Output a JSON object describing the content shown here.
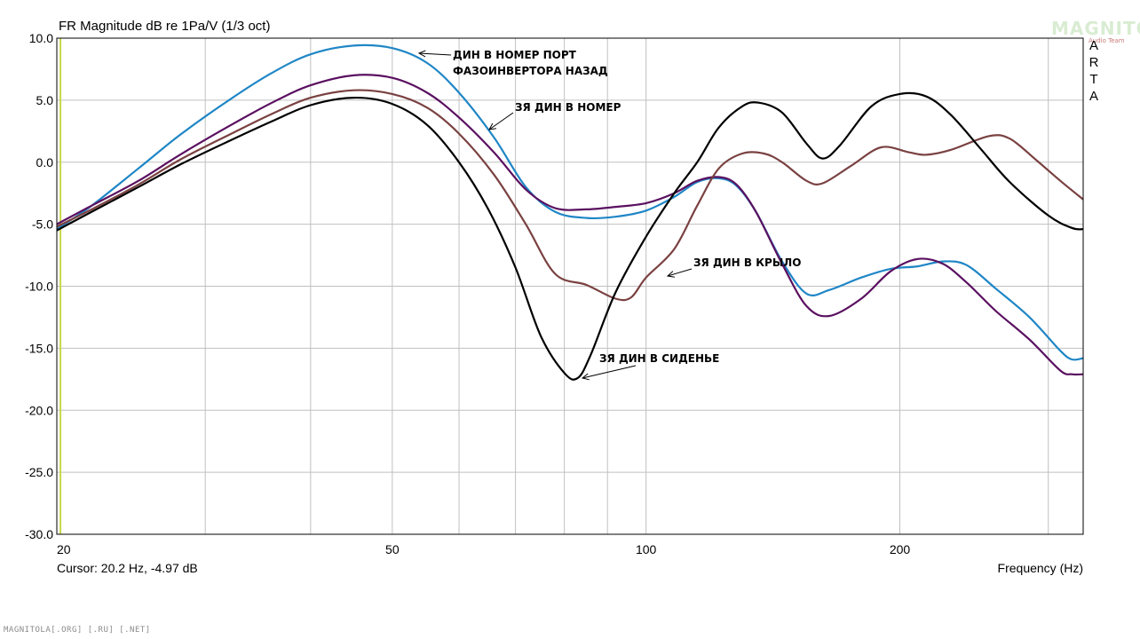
{
  "header": {
    "title": "FR Magnitude dB re 1Pa/V (1/3 oct)",
    "side_label": [
      "A",
      "R",
      "T",
      "A"
    ],
    "watermark": "MAGNITOLA",
    "watermark_sub": "Audio Team"
  },
  "status": {
    "cursor": "Cursor: 20.2 Hz, -4.97 dB",
    "x_axis_label": "Frequency (Hz)",
    "footer": "MAGNITOLA[.ORG] [.RU] [.NET]"
  },
  "colors": {
    "background": "#ffffff",
    "grid": "#c0c0c0",
    "frame": "#000000",
    "cursor_line": "#c8d84a"
  },
  "chart_data": {
    "type": "line",
    "title": "FR Magnitude dB re 1Pa/V (1/3 oct)",
    "xlabel": "Frequency (Hz)",
    "ylabel": "",
    "x_scale": "log",
    "xlim": [
      20,
      330
    ],
    "ylim": [
      -30,
      10
    ],
    "x_ticks": [
      20,
      50,
      100,
      200
    ],
    "y_ticks": [
      10,
      5,
      0,
      -5,
      -10,
      -15,
      -20,
      -25,
      -30
    ],
    "y_tick_labels": [
      "10.0",
      "5.0",
      "0.0",
      "-5.0",
      "-10.0",
      "-15.0",
      "-20.0",
      "-25.0",
      "-30.0"
    ],
    "cursor": {
      "x": 20.2,
      "y": -4.97
    },
    "grid": true,
    "series": [
      {
        "name": "ДИН В НОМЕР ПОРТ ФАЗОИНВЕРТОРА НАЗАД",
        "color": "#1f86c6",
        "points": [
          [
            20,
            -5.4
          ],
          [
            22,
            -3.5
          ],
          [
            25,
            -0.5
          ],
          [
            28,
            2.2
          ],
          [
            32,
            5.0
          ],
          [
            36,
            7.2
          ],
          [
            40,
            8.7
          ],
          [
            45,
            9.4
          ],
          [
            50,
            9.2
          ],
          [
            55,
            8.0
          ],
          [
            60,
            5.6
          ],
          [
            66,
            2.0
          ],
          [
            72,
            -2.0
          ],
          [
            78,
            -4.0
          ],
          [
            85,
            -4.5
          ],
          [
            92,
            -4.4
          ],
          [
            100,
            -3.9
          ],
          [
            108,
            -2.8
          ],
          [
            115,
            -1.6
          ],
          [
            122,
            -1.3
          ],
          [
            128,
            -1.9
          ],
          [
            135,
            -4.0
          ],
          [
            145,
            -8.0
          ],
          [
            155,
            -10.6
          ],
          [
            165,
            -10.3
          ],
          [
            180,
            -9.3
          ],
          [
            195,
            -8.6
          ],
          [
            210,
            -8.4
          ],
          [
            225,
            -8.0
          ],
          [
            240,
            -8.3
          ],
          [
            260,
            -10.2
          ],
          [
            285,
            -12.5
          ],
          [
            310,
            -15.2
          ],
          [
            320,
            -15.9
          ],
          [
            330,
            -15.8
          ]
        ]
      },
      {
        "name": "ЗЯ ДИН В НОМЕР",
        "color": "#5a1060",
        "points": [
          [
            20,
            -5.0
          ],
          [
            22,
            -3.5
          ],
          [
            25,
            -1.5
          ],
          [
            28,
            0.6
          ],
          [
            32,
            2.9
          ],
          [
            36,
            4.8
          ],
          [
            40,
            6.2
          ],
          [
            45,
            7.0
          ],
          [
            50,
            6.8
          ],
          [
            55,
            5.6
          ],
          [
            60,
            3.6
          ],
          [
            66,
            0.8
          ],
          [
            72,
            -2.2
          ],
          [
            78,
            -3.7
          ],
          [
            85,
            -3.8
          ],
          [
            92,
            -3.6
          ],
          [
            100,
            -3.3
          ],
          [
            108,
            -2.5
          ],
          [
            115,
            -1.5
          ],
          [
            122,
            -1.2
          ],
          [
            128,
            -1.8
          ],
          [
            135,
            -4.0
          ],
          [
            145,
            -8.2
          ],
          [
            155,
            -11.6
          ],
          [
            165,
            -12.4
          ],
          [
            180,
            -11.0
          ],
          [
            195,
            -8.8
          ],
          [
            210,
            -7.8
          ],
          [
            225,
            -8.2
          ],
          [
            240,
            -9.7
          ],
          [
            260,
            -12.0
          ],
          [
            285,
            -14.3
          ],
          [
            310,
            -16.8
          ],
          [
            320,
            -17.1
          ],
          [
            330,
            -17.1
          ]
        ]
      },
      {
        "name": "ЗЯ ДИН В КРЫЛО",
        "color": "#7a4141",
        "points": [
          [
            20,
            -5.2
          ],
          [
            22,
            -3.8
          ],
          [
            25,
            -1.8
          ],
          [
            28,
            0.2
          ],
          [
            32,
            2.2
          ],
          [
            36,
            3.9
          ],
          [
            40,
            5.2
          ],
          [
            45,
            5.8
          ],
          [
            50,
            5.5
          ],
          [
            55,
            4.4
          ],
          [
            60,
            2.3
          ],
          [
            66,
            -1.0
          ],
          [
            72,
            -5.0
          ],
          [
            78,
            -9.0
          ],
          [
            85,
            -9.9
          ],
          [
            92,
            -11.0
          ],
          [
            96,
            -10.9
          ],
          [
            100,
            -9.3
          ],
          [
            108,
            -7.0
          ],
          [
            115,
            -3.5
          ],
          [
            122,
            -0.5
          ],
          [
            130,
            0.7
          ],
          [
            138,
            0.7
          ],
          [
            145,
            0.0
          ],
          [
            155,
            -1.5
          ],
          [
            162,
            -1.7
          ],
          [
            175,
            -0.3
          ],
          [
            190,
            1.2
          ],
          [
            205,
            0.8
          ],
          [
            215,
            0.6
          ],
          [
            230,
            1.0
          ],
          [
            255,
            2.1
          ],
          [
            270,
            1.9
          ],
          [
            290,
            0.2
          ],
          [
            310,
            -1.5
          ],
          [
            330,
            -3.0
          ]
        ]
      },
      {
        "name": "ЗЯ ДИН В СИДЕНЬЕ",
        "color": "#000000",
        "points": [
          [
            20,
            -5.5
          ],
          [
            22,
            -4.0
          ],
          [
            25,
            -2.0
          ],
          [
            28,
            -0.2
          ],
          [
            32,
            1.7
          ],
          [
            36,
            3.3
          ],
          [
            40,
            4.6
          ],
          [
            45,
            5.2
          ],
          [
            50,
            4.7
          ],
          [
            55,
            3.0
          ],
          [
            60,
            0.0
          ],
          [
            65,
            -3.8
          ],
          [
            70,
            -8.5
          ],
          [
            75,
            -14.0
          ],
          [
            80,
            -17.0
          ],
          [
            83,
            -17.4
          ],
          [
            86,
            -15.5
          ],
          [
            92,
            -10.5
          ],
          [
            100,
            -6.0
          ],
          [
            108,
            -2.5
          ],
          [
            115,
            0.0
          ],
          [
            122,
            2.8
          ],
          [
            130,
            4.5
          ],
          [
            136,
            4.8
          ],
          [
            145,
            4.0
          ],
          [
            155,
            1.5
          ],
          [
            162,
            0.3
          ],
          [
            170,
            1.4
          ],
          [
            185,
            4.5
          ],
          [
            200,
            5.5
          ],
          [
            215,
            5.3
          ],
          [
            230,
            3.8
          ],
          [
            250,
            1.0
          ],
          [
            270,
            -1.6
          ],
          [
            300,
            -4.3
          ],
          [
            320,
            -5.3
          ],
          [
            330,
            -5.4
          ]
        ]
      }
    ],
    "annotations": [
      {
        "text": "ДИН В НОМЕР ПОРТ",
        "series": 0
      },
      {
        "text": "ФАЗОИНВЕРТОРА НАЗАД",
        "series": 0
      },
      {
        "text": "ЗЯ ДИН В НОМЕР",
        "series": 1
      },
      {
        "text": "ЗЯ ДИН В КРЫЛО",
        "series": 2
      },
      {
        "text": "ЗЯ ДИН В СИДЕНЬЕ",
        "series": 3
      }
    ]
  }
}
